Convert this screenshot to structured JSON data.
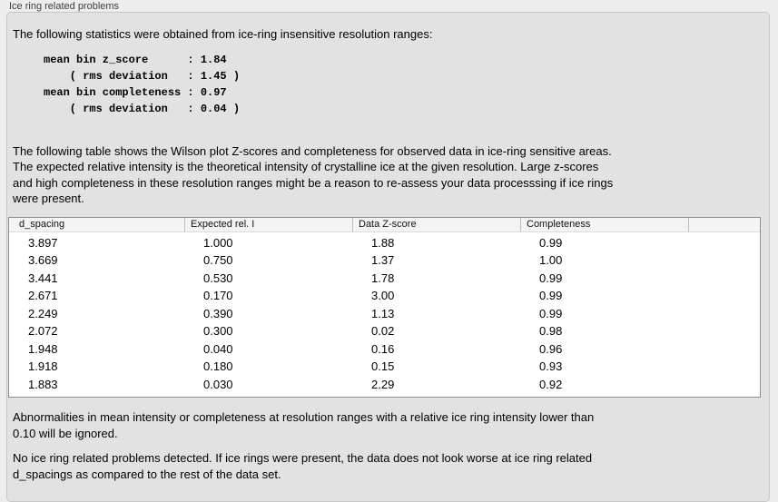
{
  "panel": {
    "title": "Ice ring related problems"
  },
  "statistics_section": {
    "intro": "The following statistics were obtained from ice-ring insensitive resolution ranges:",
    "block": "mean bin z_score      : 1.84\n    ( rms deviation   : 1.45 )\nmean bin completeness : 0.97\n    ( rms deviation   : 0.04 )",
    "values": {
      "mean_bin_z_score": "1.84",
      "mean_bin_z_score_rms_deviation": "1.45",
      "mean_bin_completeness": "0.97",
      "mean_bin_completeness_rms_deviation": "0.04"
    }
  },
  "table_description": "The following table shows the Wilson plot Z-scores and completeness for observed data in ice-ring sensitive areas.\nThe expected relative intensity is the theoretical intensity of crystalline ice at the given resolution. Large z-scores\nand high completeness in these resolution ranges might be a reason to re-assess your data processsing if ice rings\nwere present.",
  "table": {
    "columns": [
      "d_spacing",
      "Expected rel. I",
      "Data Z-score",
      "Completeness",
      ""
    ],
    "rows": [
      [
        "3.897",
        "1.000",
        "1.88",
        "0.99"
      ],
      [
        "3.669",
        "0.750",
        "1.37",
        "1.00"
      ],
      [
        "3.441",
        "0.530",
        "1.78",
        "0.99"
      ],
      [
        "2.671",
        "0.170",
        "3.00",
        "0.99"
      ],
      [
        "2.249",
        "0.390",
        "1.13",
        "0.99"
      ],
      [
        "2.072",
        "0.300",
        "0.02",
        "0.98"
      ],
      [
        "1.948",
        "0.040",
        "0.16",
        "0.96"
      ],
      [
        "1.918",
        "0.180",
        "0.15",
        "0.93"
      ],
      [
        "1.883",
        "0.030",
        "2.29",
        "0.92"
      ]
    ]
  },
  "ignore_note": "Abnormalities in mean intensity or completeness at resolution ranges with a relative ice ring intensity lower than\n0.10 will be ignored.",
  "conclusion": "No ice ring related problems detected. If ice rings were present, the data does not look worse at ice ring related\nd_spacings as compared to the rest of the data set."
}
